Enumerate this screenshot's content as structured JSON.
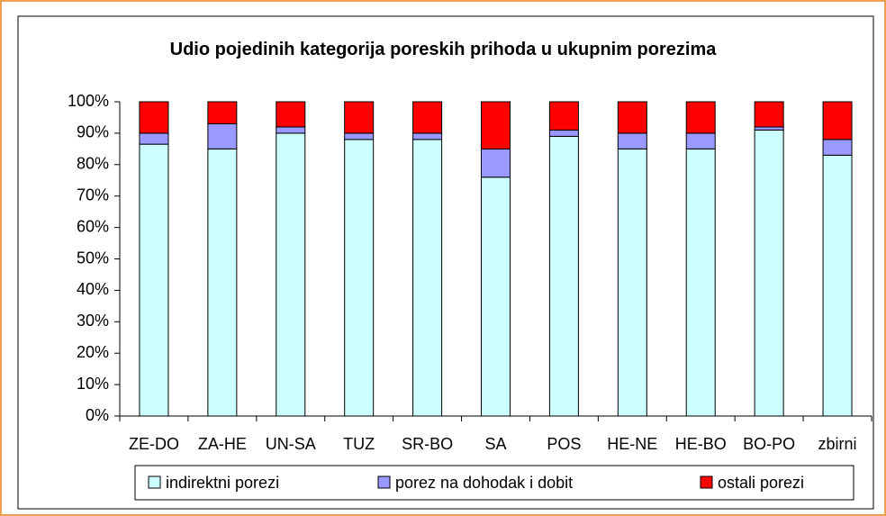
{
  "chart_data": {
    "type": "stacked_bar",
    "title": "Udio pojedinih kategorija poreskih prihoda u ukupnim porezima",
    "categories": [
      "ZE-DO",
      "ZA-HE",
      "UN-SA",
      "TUZ",
      "SR-BO",
      "SA",
      "POS",
      "HE-NE",
      "HE-BO",
      "BO-PO",
      "zbirni"
    ],
    "series": [
      {
        "name": "indirektni porezi",
        "color": "#ccffff",
        "values": [
          86.5,
          85,
          90,
          88,
          88,
          76,
          89,
          85,
          85,
          91,
          83
        ]
      },
      {
        "name": "porez na dohodak i dobit",
        "color": "#9999ff",
        "values": [
          3.5,
          8,
          2,
          2,
          2,
          9,
          2,
          5,
          5,
          1,
          5
        ]
      },
      {
        "name": "ostali porezi",
        "color": "#ff0000",
        "values": [
          10,
          7,
          8,
          10,
          10,
          15,
          9,
          10,
          10,
          8,
          12
        ]
      }
    ],
    "ylim": [
      0,
      100
    ],
    "yticks": [
      {
        "value": 0,
        "label": "0%"
      },
      {
        "value": 10,
        "label": "10%"
      },
      {
        "value": 20,
        "label": "20%"
      },
      {
        "value": 30,
        "label": "30%"
      },
      {
        "value": 40,
        "label": "40%"
      },
      {
        "value": 50,
        "label": "50%"
      },
      {
        "value": 60,
        "label": "60%"
      },
      {
        "value": 70,
        "label": "70%"
      },
      {
        "value": 80,
        "label": "80%"
      },
      {
        "value": 90,
        "label": "90%"
      },
      {
        "value": 100,
        "label": "100%"
      }
    ],
    "legend": "bottom"
  }
}
